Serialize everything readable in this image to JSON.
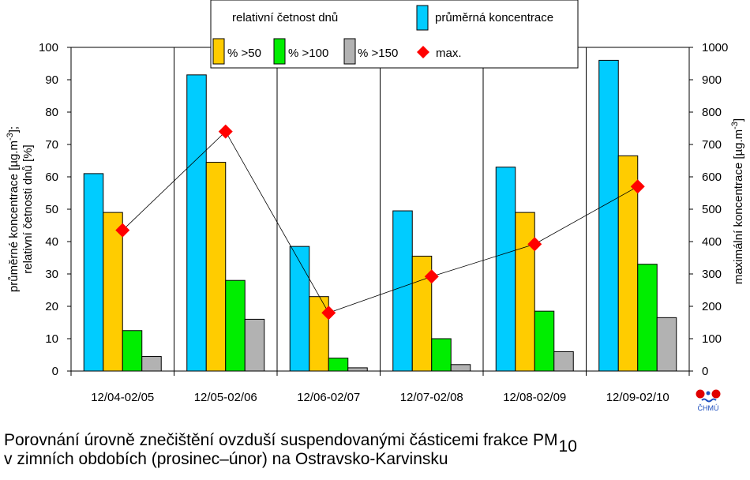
{
  "chart_data": {
    "type": "bar",
    "categories": [
      "12/04-02/05",
      "12/05-02/06",
      "12/06-02/07",
      "12/07-02/08",
      "12/08-02/09",
      "12/09-02/10"
    ],
    "series": [
      {
        "name": "průměrná koncentrace",
        "values": [
          61,
          91.5,
          38.5,
          49.5,
          63,
          96
        ],
        "color": "#00ccff",
        "axis": "left"
      },
      {
        "name": "% >50",
        "values": [
          49,
          64.5,
          23,
          35.5,
          49,
          66.5
        ],
        "color": "#ffcc00",
        "axis": "left"
      },
      {
        "name": "% >100",
        "values": [
          12.5,
          28,
          4,
          10,
          18.5,
          33
        ],
        "color": "#00ee00",
        "axis": "left"
      },
      {
        "name": "% >150",
        "values": [
          4.5,
          16,
          1,
          2,
          6,
          16.5
        ],
        "color": "#b2b2b2",
        "axis": "left"
      },
      {
        "name": "max.",
        "type": "line-marker",
        "values": [
          435,
          740,
          180,
          292,
          392,
          570
        ],
        "color": "#ff0000",
        "axis": "right"
      }
    ],
    "legend_group_title": "relativní četnost dnů",
    "ylabel_left_line1": "průměrné koncentrace [µg.m",
    "ylabel_left_sup": "-3",
    "ylabel_left_line1_end": "];",
    "ylabel_left_line2": "relativní četnosti dnů [%]",
    "ylabel_right": "maximální koncentrace [µg.m",
    "ylabel_right_sup": "-3",
    "ylabel_right_end": "]",
    "ylim_left": [
      0,
      100
    ],
    "ylim_right": [
      0,
      1000
    ],
    "yticks_left": [
      "0",
      "10",
      "20",
      "30",
      "40",
      "50",
      "60",
      "70",
      "80",
      "90",
      "100"
    ],
    "yticks_right": [
      "0",
      "100",
      "200",
      "300",
      "400",
      "500",
      "600",
      "700",
      "800",
      "900",
      "1000"
    ],
    "grid": "vertical separators between categories",
    "legend_position": "top-center"
  },
  "caption": {
    "line1": "Porovnání úrovně znečištění ovzduší suspendovanými částicemi frakce PM",
    "line1_sub": "10",
    "line2": "v zimních obdobích (prosinec–únor) na Ostravsko-Karvinsku"
  },
  "logo": {
    "text": "ČHMÚ",
    "icon": "chmu-logo-icon"
  }
}
